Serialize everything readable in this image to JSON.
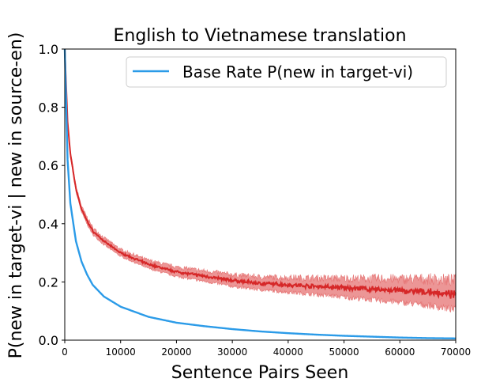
{
  "chart_data": {
    "type": "line",
    "title": "English to Vietnamese translation",
    "xlabel": "Sentence Pairs Seen",
    "ylabel": "P(new in target-vi | new in source-en)",
    "xlim": [
      0,
      70000
    ],
    "ylim": [
      0.0,
      1.0
    ],
    "x_ticks": [
      0,
      10000,
      20000,
      30000,
      40000,
      50000,
      60000,
      70000
    ],
    "y_ticks": [
      "0.0",
      "0.2",
      "0.4",
      "0.6",
      "0.8",
      "1.0"
    ],
    "grid": false,
    "legend_position": "top-right",
    "series": [
      {
        "name": "Base Rate P(new in target-vi)",
        "color": "#2b9be8",
        "x": [
          0,
          500,
          1000,
          2000,
          3000,
          4000,
          5000,
          7000,
          10000,
          15000,
          20000,
          25000,
          30000,
          35000,
          40000,
          45000,
          50000,
          55000,
          60000,
          65000,
          70000
        ],
        "y": [
          1.0,
          0.62,
          0.47,
          0.34,
          0.27,
          0.225,
          0.19,
          0.15,
          0.115,
          0.08,
          0.06,
          0.048,
          0.038,
          0.03,
          0.024,
          0.019,
          0.015,
          0.012,
          0.009,
          0.007,
          0.006
        ]
      },
      {
        "color": "#d62728",
        "band_color": "#e57373",
        "x": [
          0,
          500,
          1000,
          2000,
          3000,
          4000,
          5000,
          7000,
          10000,
          15000,
          20000,
          25000,
          30000,
          35000,
          40000,
          45000,
          50000,
          55000,
          60000,
          65000,
          70000
        ],
        "y": [
          1.0,
          0.75,
          0.64,
          0.52,
          0.45,
          0.41,
          0.375,
          0.34,
          0.3,
          0.26,
          0.235,
          0.22,
          0.205,
          0.195,
          0.19,
          0.185,
          0.18,
          0.175,
          0.17,
          0.165,
          0.155
        ],
        "band_halfwidth": [
          0.0,
          0.01,
          0.01,
          0.01,
          0.01,
          0.012,
          0.012,
          0.012,
          0.012,
          0.014,
          0.016,
          0.018,
          0.02,
          0.022,
          0.025,
          0.028,
          0.032,
          0.036,
          0.04,
          0.045,
          0.05
        ]
      }
    ]
  }
}
